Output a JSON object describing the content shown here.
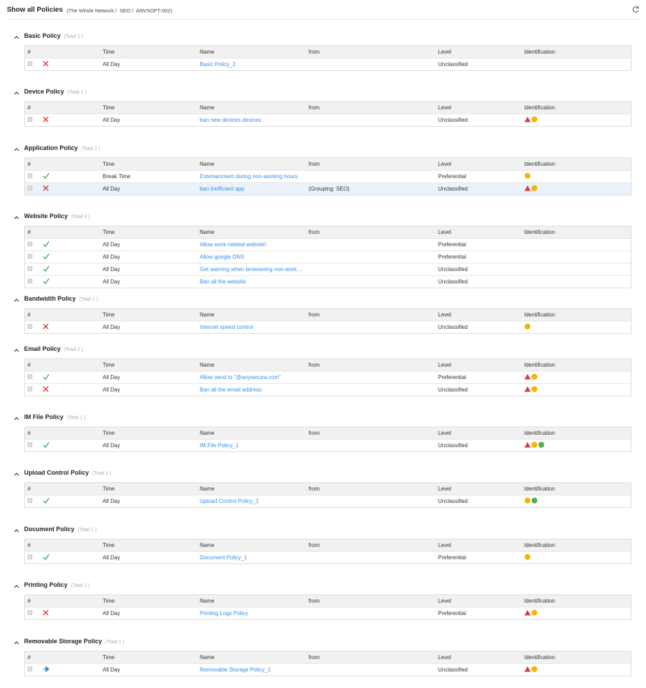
{
  "header": {
    "title": "Show all Policies",
    "breadcrumb": "(The Whole Network /  SEO /  ANVSOFT-002)"
  },
  "columns": {
    "index": "#",
    "time": "Time",
    "name": "Name",
    "from": "from",
    "level": "Level",
    "identification": "Identification"
  },
  "sections": [
    {
      "title": "Basic Policy",
      "total": "(Total 1 )",
      "rows": [
        {
          "time": "All Day",
          "name": "Basic Policy_2",
          "level": "Unclassified"
        }
      ]
    },
    {
      "title": "Device Policy",
      "total": "(Total 1 )",
      "rows": [
        {
          "time": "All Day",
          "name": "ban new devices devices",
          "level": "Unclassified"
        }
      ]
    },
    {
      "title": "Application Policy",
      "total": "(Total 2 )",
      "rows": [
        {
          "time": "Break Time",
          "name": "Entertainment during non-working hours",
          "level": "Preferential"
        },
        {
          "time": "All Day",
          "name": "ban inefficient app",
          "from": "(Grouping: SEO)",
          "level": "Unclassified"
        }
      ]
    },
    {
      "title": "Website Policy",
      "total": "(Total 4 )",
      "rows": [
        {
          "time": "All Day",
          "name": "Allow work-related website!",
          "level": "Preferential"
        },
        {
          "time": "All Day",
          "name": "Allow google DNS",
          "level": "Preferential"
        },
        {
          "time": "All Day",
          "name": "Get warning when browsering non-work…",
          "level": "Unclassified"
        },
        {
          "time": "All Day",
          "name": "Ban all the website",
          "level": "Unclassified"
        }
      ]
    },
    {
      "title": "Bandwidth Policy",
      "total": "(Total 1 )",
      "rows": [
        {
          "time": "All Day",
          "name": "Internet speed control",
          "level": "Unclassified"
        }
      ]
    },
    {
      "title": "Email Policy",
      "total": "(Total 2 )",
      "rows": [
        {
          "time": "All Day",
          "name": "Allow send to \"@anysecura.com\"",
          "level": "Preferential"
        },
        {
          "time": "All Day",
          "name": "Ban all the email address",
          "level": "Unclassified"
        }
      ]
    },
    {
      "title": "IM File Policy",
      "total": "(Total 1 )",
      "rows": [
        {
          "time": "All Day",
          "name": "IM File Policy_1",
          "level": "Unclassified"
        }
      ]
    },
    {
      "title": "Upload Control Policy",
      "total": "(Total 1 )",
      "rows": [
        {
          "time": "All Day",
          "name": "Upload Control Policy_1",
          "level": "Unclassified"
        }
      ]
    },
    {
      "title": "Document Policy",
      "total": "(Total 1 )",
      "rows": [
        {
          "time": "All Day",
          "name": "Document Policy_1",
          "level": "Preferential"
        }
      ]
    },
    {
      "title": "Printing Policy",
      "total": "(Total 1 )",
      "rows": [
        {
          "time": "All Day",
          "name": "Printing Logs Policy",
          "level": "Preferential"
        }
      ]
    },
    {
      "title": "Removable Storage Policy",
      "total": "(Total 1 )",
      "rows": [
        {
          "time": "All Day",
          "name": "Removable Storage Policy_1",
          "level": "Unclassified"
        }
      ]
    }
  ]
}
